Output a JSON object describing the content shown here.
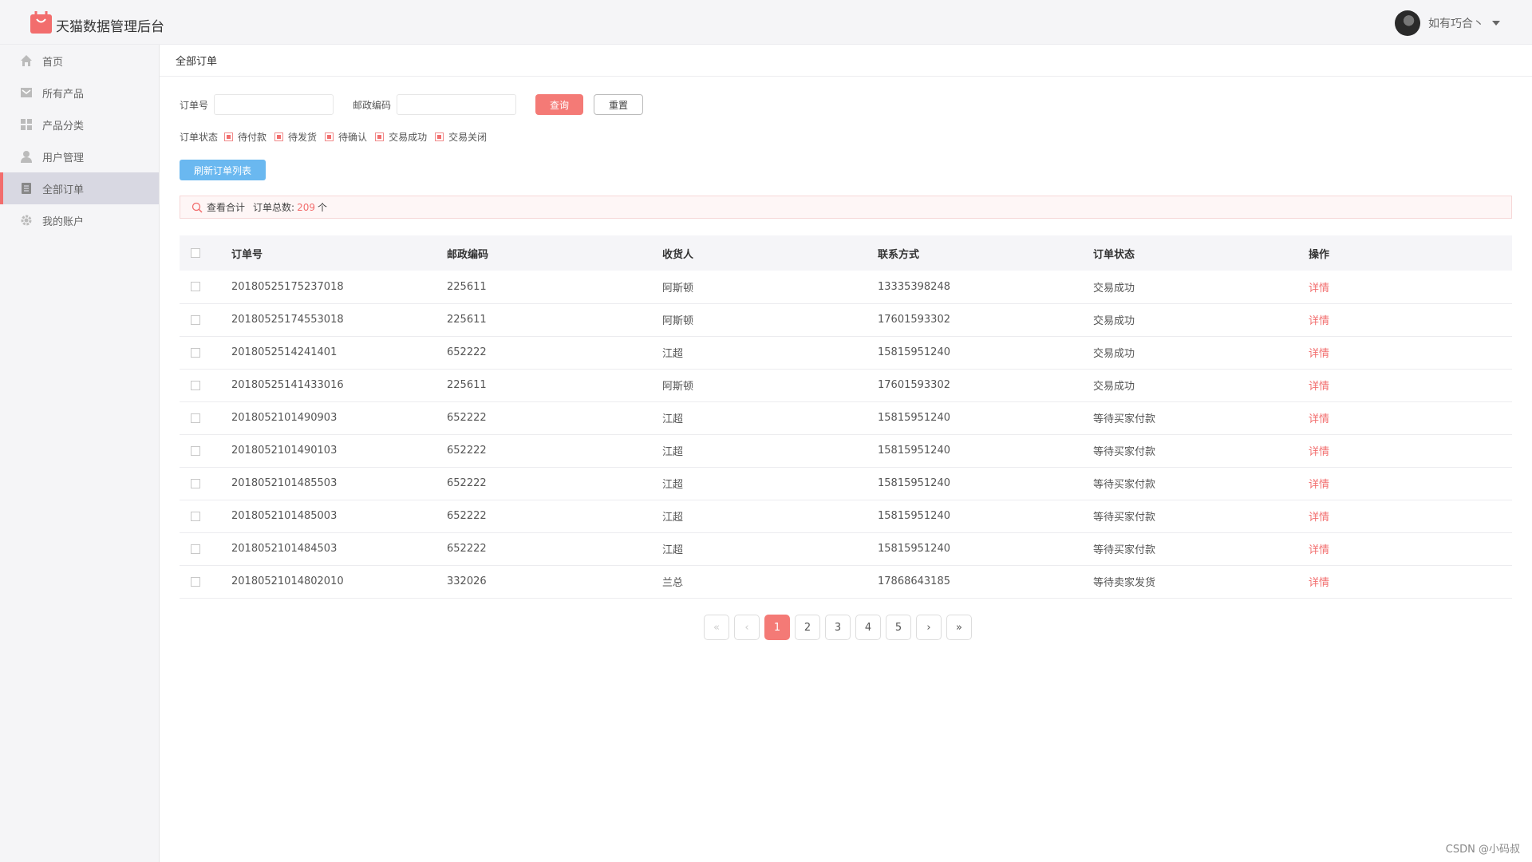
{
  "header": {
    "title": "天猫数据管理后台",
    "user": "如有巧合丶"
  },
  "sidebar": {
    "items": [
      {
        "label": "首页",
        "icon": "home-icon"
      },
      {
        "label": "所有产品",
        "icon": "product-icon"
      },
      {
        "label": "产品分类",
        "icon": "category-icon"
      },
      {
        "label": "用户管理",
        "icon": "user-icon"
      },
      {
        "label": "全部订单",
        "icon": "order-icon",
        "active": true
      },
      {
        "label": "我的账户",
        "icon": "gear-icon"
      }
    ]
  },
  "page": {
    "title": "全部订单"
  },
  "filters": {
    "order_label": "订单号",
    "order_value": "",
    "zip_label": "邮政编码",
    "zip_value": "",
    "query_label": "查询",
    "reset_label": "重置",
    "status_label": "订单状态",
    "status_options": [
      "待付款",
      "待发货",
      "待确认",
      "交易成功",
      "交易关闭"
    ],
    "refresh_label": "刷新订单列表"
  },
  "summary": {
    "prefix": "查看合计",
    "label": "订单总数:",
    "count": "209",
    "unit": "个"
  },
  "table": {
    "headers": [
      "订单号",
      "邮政编码",
      "收货人",
      "联系方式",
      "订单状态",
      "操作"
    ],
    "rows": [
      {
        "order": "20180525175237018",
        "zip": "225611",
        "name": "阿斯顿",
        "phone": "13335398248",
        "status": "交易成功",
        "status_type": "success",
        "action": "详情"
      },
      {
        "order": "20180525174553018",
        "zip": "225611",
        "name": "阿斯顿",
        "phone": "17601593302",
        "status": "交易成功",
        "status_type": "success",
        "action": "详情"
      },
      {
        "order": "2018052514241401",
        "zip": "652222",
        "name": "江超",
        "phone": "15815951240",
        "status": "交易成功",
        "status_type": "success",
        "action": "详情"
      },
      {
        "order": "20180525141433016",
        "zip": "225611",
        "name": "阿斯顿",
        "phone": "17601593302",
        "status": "交易成功",
        "status_type": "success",
        "action": "详情"
      },
      {
        "order": "2018052101490903",
        "zip": "652222",
        "name": "江超",
        "phone": "15815951240",
        "status": "等待买家付款",
        "status_type": "pay",
        "action": "详情"
      },
      {
        "order": "2018052101490103",
        "zip": "652222",
        "name": "江超",
        "phone": "15815951240",
        "status": "等待买家付款",
        "status_type": "pay",
        "action": "详情"
      },
      {
        "order": "2018052101485503",
        "zip": "652222",
        "name": "江超",
        "phone": "15815951240",
        "status": "等待买家付款",
        "status_type": "pay",
        "action": "详情"
      },
      {
        "order": "2018052101485003",
        "zip": "652222",
        "name": "江超",
        "phone": "15815951240",
        "status": "等待买家付款",
        "status_type": "pay",
        "action": "详情"
      },
      {
        "order": "2018052101484503",
        "zip": "652222",
        "name": "江超",
        "phone": "15815951240",
        "status": "等待买家付款",
        "status_type": "pay",
        "action": "详情"
      },
      {
        "order": "20180521014802010",
        "zip": "332026",
        "name": "兰总",
        "phone": "17868643185",
        "status": "等待卖家发货",
        "status_type": "ship",
        "action": "详情"
      }
    ]
  },
  "pagination": {
    "first": "«",
    "prev": "‹",
    "next": "›",
    "last": "»",
    "pages": [
      "1",
      "2",
      "3",
      "4",
      "5"
    ],
    "current": "1"
  },
  "watermark": "CSDN @小码叔",
  "colors": {
    "accent": "#f26d6d",
    "success": "#8bc38b",
    "pending": "#d9ac84",
    "ship": "#f0a060",
    "refresh": "#6ab8f0"
  }
}
